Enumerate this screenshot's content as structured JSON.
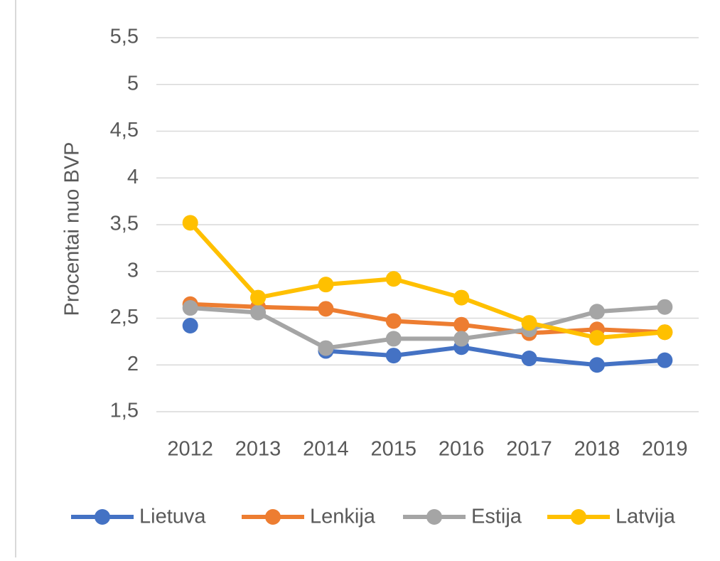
{
  "chart_data": {
    "type": "line",
    "y_label": "Procentai nuo BVP",
    "categories": [
      "2012",
      "2013",
      "2014",
      "2015",
      "2016",
      "2017",
      "2018",
      "2019"
    ],
    "series": [
      {
        "name": "Lietuva",
        "color": "#4472c4",
        "values": [
          2.42,
          null,
          2.15,
          2.1,
          2.19,
          2.07,
          2.0,
          2.05
        ]
      },
      {
        "name": "Lenkija",
        "color": "#ed7d31",
        "values": [
          2.65,
          2.62,
          2.6,
          2.47,
          2.43,
          2.34,
          2.38,
          2.35
        ]
      },
      {
        "name": "Estija",
        "color": "#a5a5a5",
        "values": [
          2.61,
          2.56,
          2.18,
          2.28,
          2.28,
          2.38,
          2.57,
          2.62
        ]
      },
      {
        "name": "Latvija",
        "color": "#ffc000",
        "values": [
          3.52,
          2.72,
          2.86,
          2.92,
          2.72,
          2.45,
          2.29,
          2.35
        ]
      }
    ],
    "ylim": [
      1.5,
      5.5
    ],
    "yticks": [
      {
        "value": 1.5,
        "label": "1,5"
      },
      2,
      {
        "value": 2.5,
        "label": "2,5"
      },
      3,
      {
        "value": 3.5,
        "label": "3,5"
      },
      4,
      {
        "value": 4.5,
        "label": "4,5"
      },
      5,
      {
        "value": 5.5,
        "label": "5,5"
      }
    ],
    "grid": true,
    "legend": "bottom"
  }
}
